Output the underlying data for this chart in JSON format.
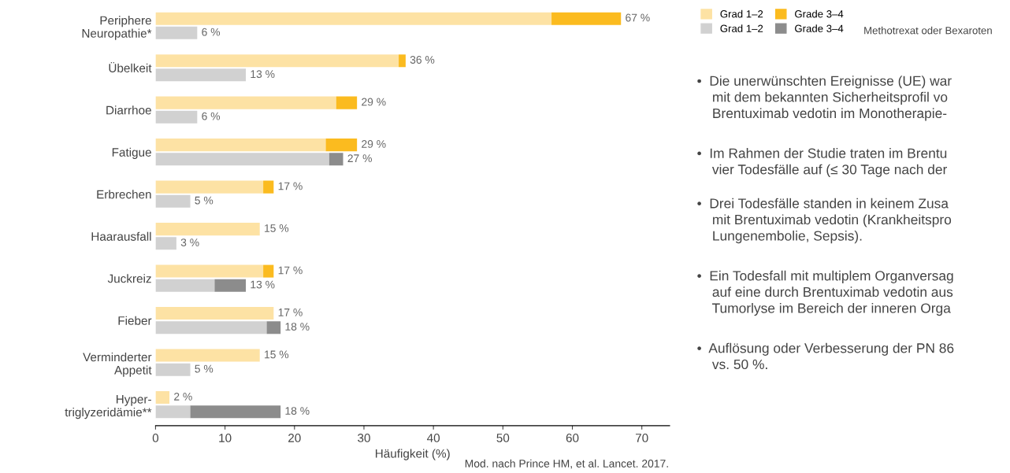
{
  "chart_data": {
    "type": "bar",
    "orientation": "horizontal",
    "categories": [
      "Periphere\nNeuropathie*",
      "Übelkeit",
      "Diarrhoe",
      "Fatigue",
      "Erbrechen",
      "Haarausfall",
      "Juckreiz",
      "Fieber",
      "Verminderter\nAppetit",
      "Hyper-\ntriglyzeridämie**"
    ],
    "series": [
      {
        "name": "Grad 1–2",
        "color": "#fde2a4",
        "base": [
          0,
          0,
          0,
          0,
          0,
          0,
          0,
          0,
          0,
          0
        ],
        "values": [
          57,
          35,
          26,
          24.5,
          15.5,
          15,
          15.5,
          17,
          15,
          2
        ]
      },
      {
        "name": "Grade 3–4",
        "color": "#fbbb1f",
        "base": [
          57,
          35,
          26,
          24.5,
          15.5,
          null,
          15.5,
          null,
          null,
          null
        ],
        "values": [
          10,
          1,
          3,
          4.5,
          1.5,
          null,
          1.5,
          null,
          null,
          null
        ]
      },
      {
        "name": "Grad 1–2",
        "color": "#d1d1d1",
        "base": [
          0,
          0,
          0,
          0,
          0,
          0,
          0,
          0,
          0,
          0
        ],
        "values": [
          6,
          13,
          6,
          25,
          5,
          3,
          8.5,
          16,
          5,
          5
        ]
      },
      {
        "name": "Grade 3–4",
        "color": "#8c8c8c",
        "base": [
          null,
          null,
          null,
          25,
          null,
          null,
          8.5,
          16,
          null,
          5
        ],
        "values": [
          null,
          null,
          null,
          2,
          null,
          null,
          4.5,
          2,
          null,
          13
        ]
      }
    ],
    "totals": [
      [
        "67 %",
        "36 %",
        "29 %",
        "29 %",
        "17 %",
        "15 %",
        "17 %",
        "17 %",
        "15 %",
        "2 %"
      ],
      [
        "6 %",
        "13 %",
        "6 %",
        "27 %",
        "5 %",
        "3 %",
        "13 %",
        "18 %",
        "5 %",
        "18 %"
      ]
    ],
    "xlim": [
      0,
      74
    ],
    "xticks": [
      0,
      10,
      20,
      30,
      40,
      50,
      60,
      70
    ],
    "xlabel": "Häufigkeit (%)",
    "legend": "top right",
    "annotations": [
      "Mod. nach Prince HM, et al. Lancet. 2017.",
      "Methotrexat oder Bexaroten",
      "•  Die unerwünschten Ereignisse (UE) war\n    mit dem bekannten Sicherheitsprofil vo\n    Brentuximab vedotin im Monotherapie-",
      "•  Im Rahmen der Studie traten im Brentu\n    vier Todesfälle auf (≤ 30 Tage nach der",
      "•  Drei Todesfälle standen in keinem Zusa\n    mit Brentuximab vedotin (Krankheitspro\n    Lungenembolie, Sepsis).",
      "•  Ein Todesfall mit multiplem Organversag\n    auf eine durch Brentuximab vedotin aus\n    Tumorlyse im Bereich der inneren Orga",
      "•  Auflösung oder Verbesserung der PN 86\n    vs. 50 %."
    ]
  }
}
